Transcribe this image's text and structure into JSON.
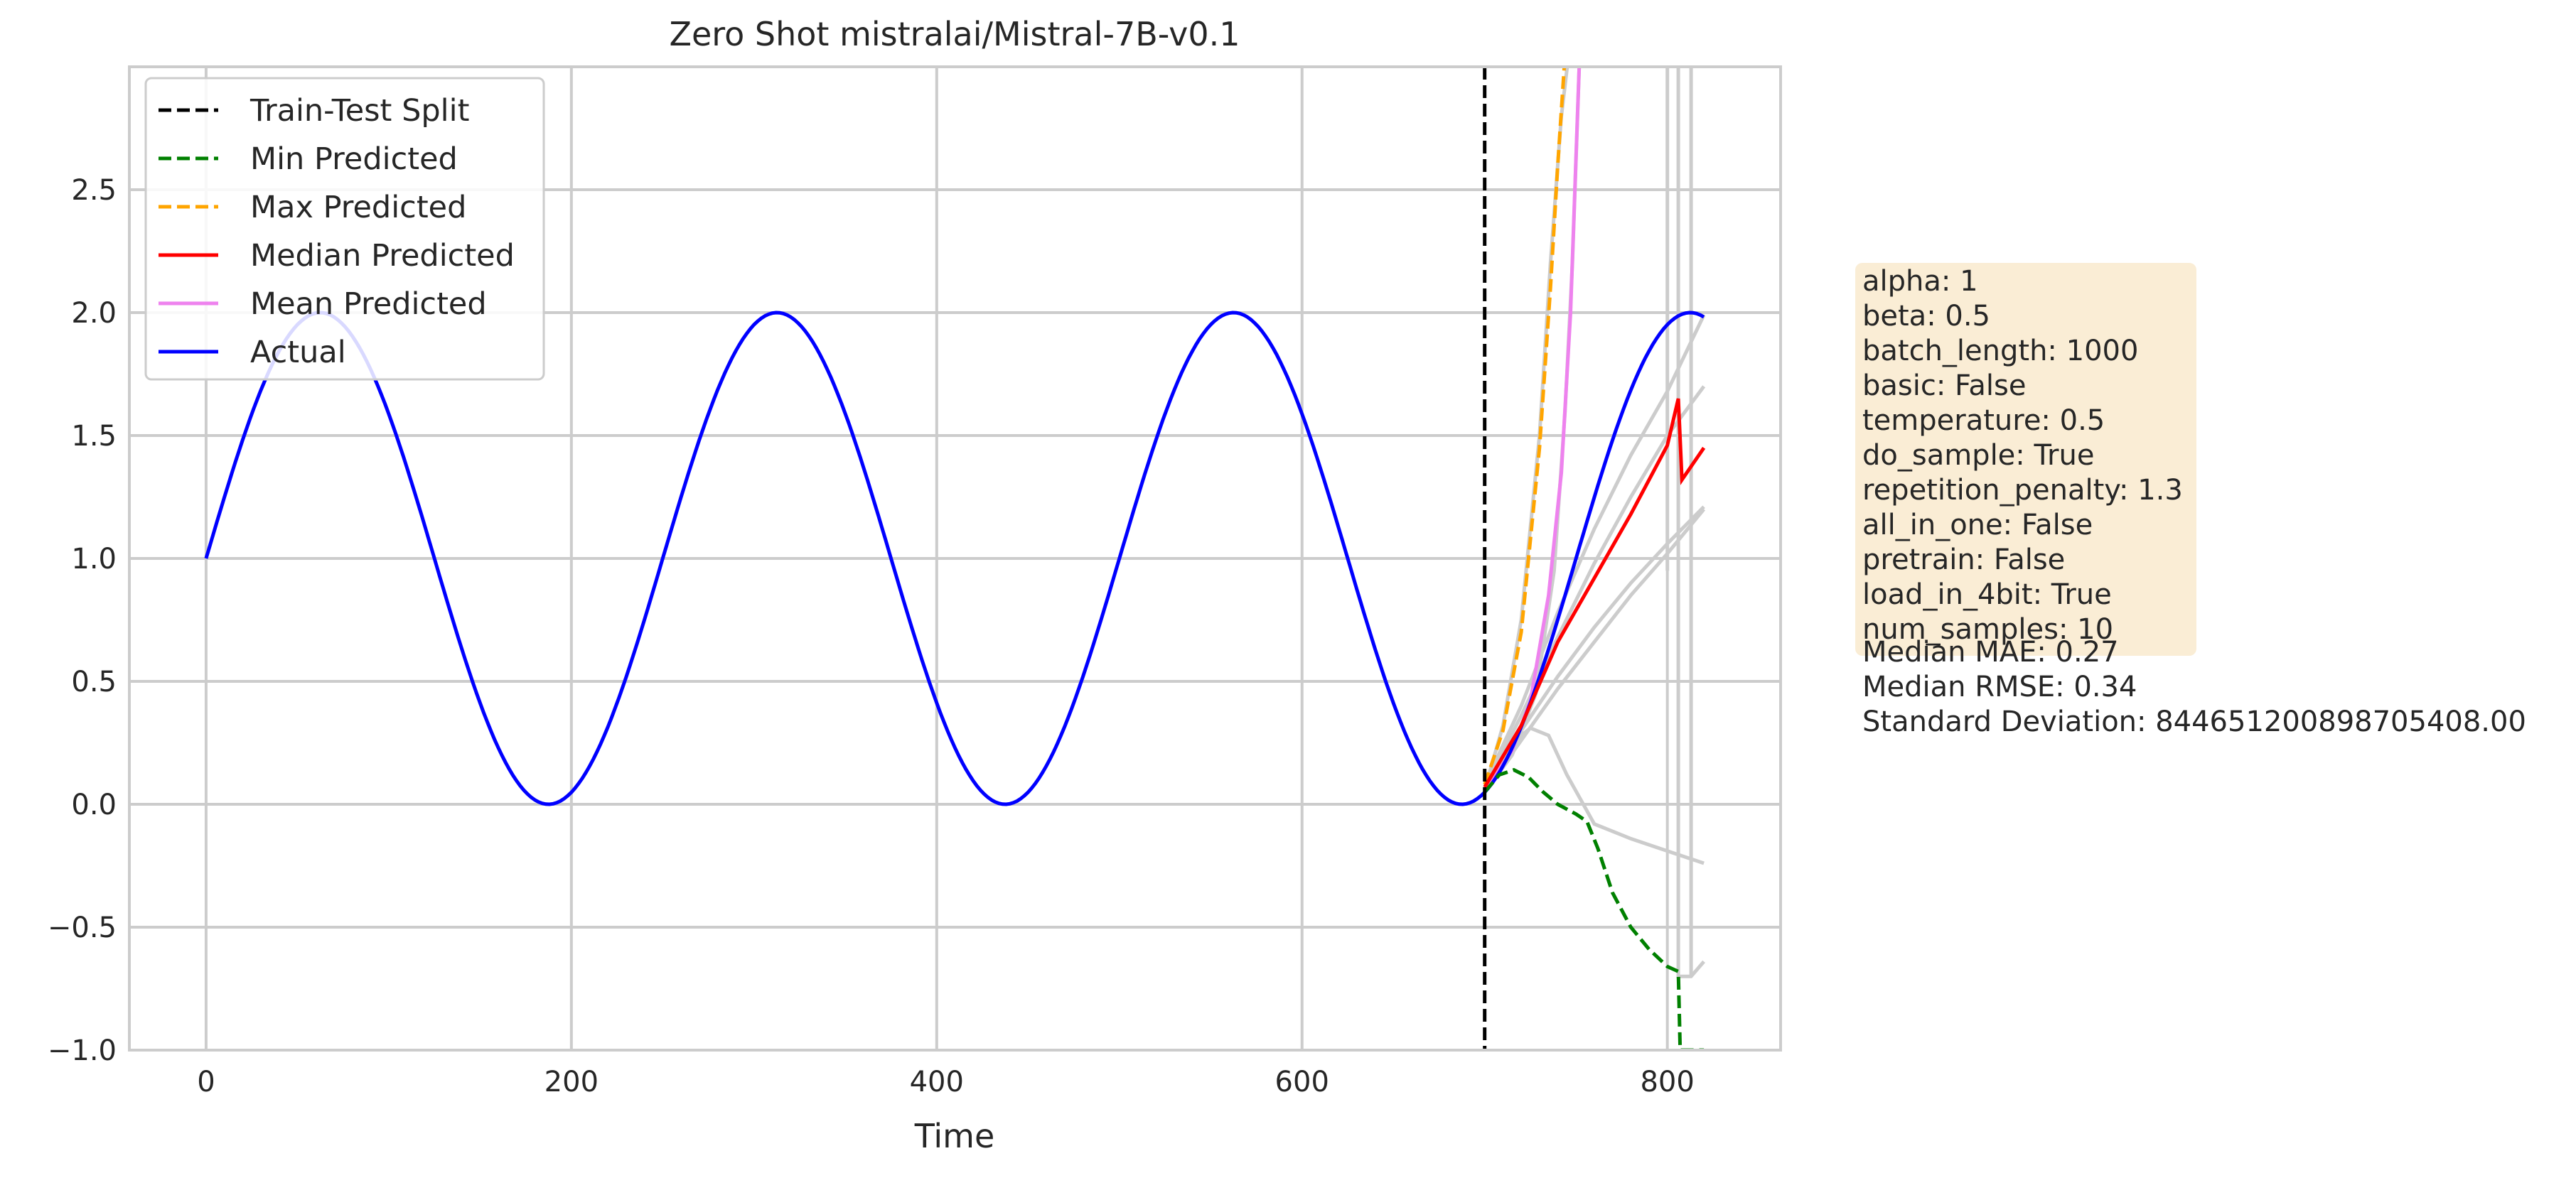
{
  "chart_data": {
    "type": "line",
    "title": "Zero Shot mistralai/Mistral-7B-v0.1",
    "xlabel": "Time",
    "ylabel": "",
    "xlim": [
      -42,
      862
    ],
    "ylim": [
      -1.0,
      3.0
    ],
    "grid": true,
    "legend_position": "top-left",
    "xticks": [
      0,
      200,
      400,
      600,
      800
    ],
    "xtick_labels": [
      "0",
      "200",
      "400",
      "600",
      "800"
    ],
    "yticks": [
      -1.0,
      -0.5,
      0.0,
      0.5,
      1.0,
      1.5,
      2.0,
      2.5
    ],
    "ytick_labels": [
      "−1.0",
      "−0.5",
      "0.0",
      "0.5",
      "1.0",
      "1.5",
      "2.0",
      "2.5"
    ],
    "split_x": 700,
    "actual": {
      "name": "Actual",
      "color": "#0000ff",
      "function": "1 + sin(2*pi*t/250)",
      "x_range": [
        0,
        820
      ]
    },
    "series": [
      {
        "name": "Min Predicted",
        "color": "#008000",
        "dash": true,
        "x": [
          700,
          708,
          716,
          724,
          732,
          740,
          750,
          756,
          762,
          770,
          780,
          790,
          800,
          806,
          807,
          820
        ],
        "y": [
          0.05,
          0.12,
          0.14,
          0.11,
          0.05,
          0.0,
          -0.04,
          -0.07,
          -0.18,
          -0.36,
          -0.5,
          -0.59,
          -0.66,
          -0.68,
          -1.0,
          -1.0
        ]
      },
      {
        "name": "Max Predicted",
        "color": "#ffa500",
        "dash": true,
        "x": [
          700,
          710,
          720,
          730,
          736,
          740,
          744
        ],
        "y": [
          0.08,
          0.3,
          0.7,
          1.45,
          2.1,
          2.6,
          3.05
        ]
      },
      {
        "name": "Median Predicted",
        "color": "#ff0000",
        "dash": false,
        "x": [
          700,
          720,
          740,
          760,
          780,
          800,
          806,
          808,
          820
        ],
        "y": [
          0.07,
          0.32,
          0.66,
          0.92,
          1.18,
          1.46,
          1.65,
          1.32,
          1.45
        ]
      },
      {
        "name": "Mean Predicted",
        "color": "#ee82ee",
        "dash": false,
        "x": [
          700,
          715,
          725,
          735,
          742,
          747,
          752
        ],
        "y": [
          0.05,
          0.22,
          0.42,
          0.85,
          1.35,
          2.0,
          3.05
        ]
      }
    ],
    "samples": [
      {
        "color": "#cccccc",
        "x": [
          700,
          720,
          740,
          760,
          780,
          800,
          820
        ],
        "y": [
          0.05,
          0.26,
          0.47,
          0.66,
          0.85,
          1.02,
          1.2
        ]
      },
      {
        "color": "#cccccc",
        "x": [
          700,
          720,
          740,
          760,
          780,
          800,
          820
        ],
        "y": [
          0.06,
          0.3,
          0.52,
          0.72,
          0.9,
          1.06,
          1.21
        ]
      },
      {
        "color": "#cccccc",
        "x": [
          700,
          720,
          740,
          760,
          780,
          800,
          820
        ],
        "y": [
          0.08,
          0.4,
          0.78,
          1.12,
          1.42,
          1.68,
          1.99
        ]
      },
      {
        "color": "#cccccc",
        "x": [
          700,
          720,
          740,
          760,
          780,
          800,
          820
        ],
        "y": [
          0.07,
          0.36,
          0.68,
          0.98,
          1.25,
          1.5,
          1.7
        ]
      },
      {
        "color": "#cccccc",
        "x": [
          700,
          715,
          725,
          735,
          745,
          760,
          780,
          800,
          820
        ],
        "y": [
          0.05,
          0.25,
          0.31,
          0.28,
          0.12,
          -0.08,
          -0.14,
          -0.19,
          -0.24
        ]
      },
      {
        "color": "#cccccc",
        "x": [
          700,
          710,
          720,
          730,
          736,
          742,
          746
        ],
        "y": [
          0.06,
          0.32,
          0.75,
          1.5,
          2.2,
          2.8,
          3.05
        ]
      },
      {
        "color": "#cccccc",
        "x": [
          700,
          715,
          728,
          738,
          744,
          748,
          752
        ],
        "y": [
          0.05,
          0.2,
          0.45,
          0.95,
          1.6,
          2.2,
          3.05
        ]
      },
      {
        "color": "#cccccc",
        "x": [
          806,
          806,
          813,
          820
        ],
        "y": [
          3.05,
          -0.7,
          -0.7,
          -0.64
        ]
      },
      {
        "color": "#cccccc",
        "x": [
          800,
          800
        ],
        "y": [
          3.05,
          0.95
        ]
      },
      {
        "color": "#cccccc",
        "x": [
          813,
          813
        ],
        "y": [
          3.05,
          -0.7
        ]
      }
    ],
    "legend": [
      {
        "label": "Train-Test Split",
        "color": "#000000",
        "dash": true
      },
      {
        "label": "Min Predicted",
        "color": "#008000",
        "dash": true
      },
      {
        "label": "Max Predicted",
        "color": "#ffa500",
        "dash": true
      },
      {
        "label": "Median Predicted",
        "color": "#ff0000",
        "dash": false
      },
      {
        "label": "Mean Predicted",
        "color": "#ee82ee",
        "dash": false
      },
      {
        "label": "Actual",
        "color": "#0000ff",
        "dash": false
      }
    ]
  },
  "params": {
    "lines": [
      "alpha: 1",
      "beta: 0.5",
      "batch_length: 1000",
      "basic: False",
      "temperature: 0.5",
      "do_sample: True",
      "repetition_penalty: 1.3",
      "all_in_one: False",
      "pretrain: False",
      "load_in_4bit: True",
      "num_samples: 10"
    ]
  },
  "metrics": {
    "lines": [
      "Median MAE: 0.27",
      "Median RMSE: 0.34",
      "Standard Deviation: 844651200898705408.00"
    ]
  }
}
